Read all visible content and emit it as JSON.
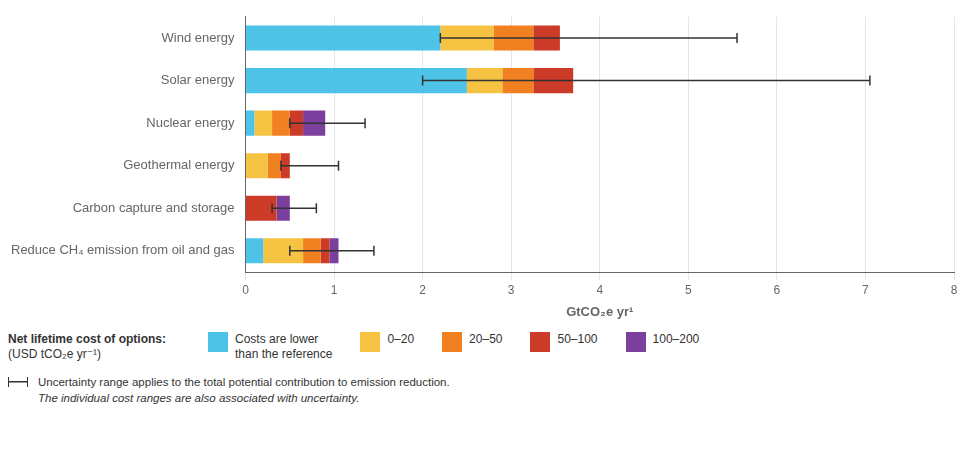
{
  "chart_data": {
    "type": "bar",
    "orientation": "horizontal",
    "stacked": true,
    "categories": [
      "Wind energy",
      "Solar energy",
      "Nuclear energy",
      "Geothermal energy",
      "Carbon capture and storage",
      "Reduce CH₄ emission from oil and gas"
    ],
    "series": [
      {
        "name": "Costs are lower\nthan the reference",
        "color": "#4DC3E8",
        "values": [
          2.2,
          2.5,
          0.1,
          0.0,
          0.0,
          0.2
        ]
      },
      {
        "name": "0–20",
        "color": "#F5C242",
        "values": [
          0.6,
          0.4,
          0.2,
          0.25,
          0.0,
          0.45
        ]
      },
      {
        "name": "20–50",
        "color": "#F08020",
        "values": [
          0.45,
          0.35,
          0.2,
          0.15,
          0.0,
          0.2
        ]
      },
      {
        "name": "50–100",
        "color": "#CC3A28",
        "values": [
          0.3,
          0.45,
          0.15,
          0.1,
          0.35,
          0.1
        ]
      },
      {
        "name": "100–200",
        "color": "#7B3F9E",
        "values": [
          0.0,
          0.0,
          0.25,
          0.0,
          0.15,
          0.1
        ]
      }
    ],
    "error_centers": [
      3.55,
      4.4,
      0.9,
      0.65,
      0.5,
      1.0
    ],
    "error_low": [
      1.35,
      2.4,
      0.4,
      0.25,
      0.2,
      0.5
    ],
    "error_high": [
      2.0,
      2.65,
      0.45,
      0.4,
      0.3,
      0.45
    ],
    "error_color": "#333333",
    "xlabel": "GtCO₂e yr¹",
    "xlim": [
      0,
      8
    ],
    "xticks": [
      0,
      1,
      2,
      3,
      4,
      5,
      6,
      7,
      8
    ],
    "grid": true,
    "legend": "bottom",
    "legend_title": "Net lifetime cost of options:",
    "legend_subtitle": "(USD tCO₂e yr⁻¹)",
    "annotations": [
      "Uncertainty range applies to the total potential contribution to emission reduction.",
      "The individual cost ranges are also associated with uncertainty."
    ]
  }
}
